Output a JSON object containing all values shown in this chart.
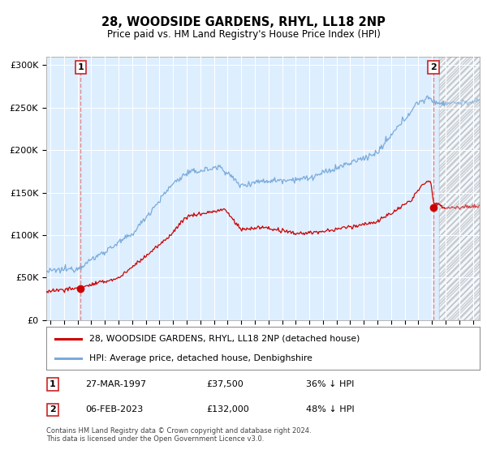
{
  "title": "28, WOODSIDE GARDENS, RHYL, LL18 2NP",
  "subtitle": "Price paid vs. HM Land Registry's House Price Index (HPI)",
  "legend_line1": "28, WOODSIDE GARDENS, RHYL, LL18 2NP (detached house)",
  "legend_line2": "HPI: Average price, detached house, Denbighshire",
  "transaction1_date": "27-MAR-1997",
  "transaction1_price": 37500,
  "transaction1_label": "36% ↓ HPI",
  "transaction2_date": "06-FEB-2023",
  "transaction2_price": 132000,
  "transaction2_label": "48% ↓ HPI",
  "footer": "Contains HM Land Registry data © Crown copyright and database right 2024.\nThis data is licensed under the Open Government Licence v3.0.",
  "hpi_color": "#7aabdb",
  "price_color": "#cc0000",
  "vline_color": "#e08080",
  "background_color": "#ddeeff",
  "ylim": [
    0,
    310000
  ],
  "xlim_start": 1994.7,
  "xlim_end": 2026.5,
  "t1_year": 1997.23,
  "t2_year": 2023.1,
  "future_start": 2023.5
}
